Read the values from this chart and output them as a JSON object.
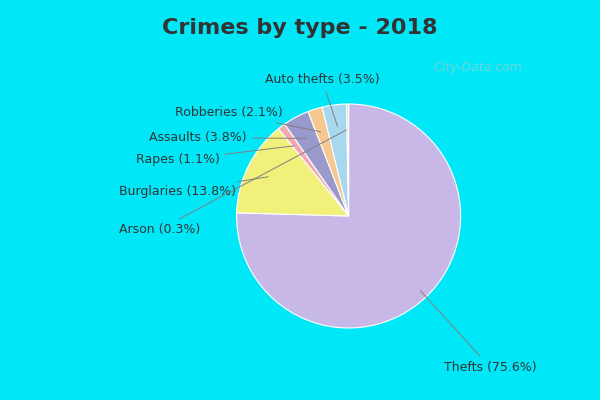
{
  "title": "Crimes by type - 2018",
  "slices": [
    {
      "label": "Thefts",
      "pct": 75.6,
      "color": "#c8b8e8"
    },
    {
      "label": "Burglaries",
      "pct": 13.8,
      "color": "#f0f07a"
    },
    {
      "label": "Rapes",
      "pct": 1.1,
      "color": "#f4a8b0"
    },
    {
      "label": "Assaults",
      "pct": 3.8,
      "color": "#9999cc"
    },
    {
      "label": "Robberies",
      "pct": 2.1,
      "color": "#f5c890"
    },
    {
      "label": "Auto thefts",
      "pct": 3.5,
      "color": "#a8d8f0"
    },
    {
      "label": "Arson",
      "pct": 0.3,
      "color": "#c8e8c8"
    }
  ],
  "background_top": "#00e8f8",
  "background_chart": "#e8f5ee",
  "title_fontsize": 16,
  "label_fontsize": 9,
  "startangle": 90,
  "watermark": "City-Data.com"
}
